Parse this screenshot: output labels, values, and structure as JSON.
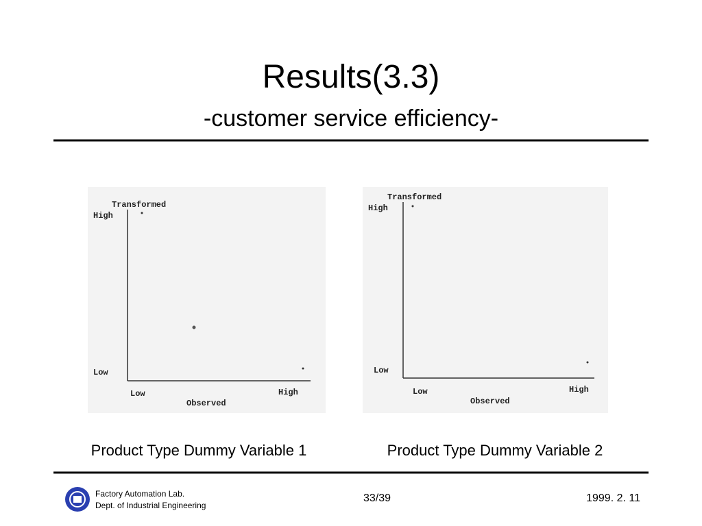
{
  "header": {
    "title": "Results(3.3)",
    "subtitle": "-customer service efficiency-"
  },
  "figures": [
    {
      "y_label": "Transformed",
      "y_high": "High",
      "y_low": "Low",
      "x_low": "Low",
      "x_high": "High",
      "x_label": "Observed",
      "caption": "Product Type Dummy Variable 1"
    },
    {
      "y_label": "Transformed",
      "y_high": "High",
      "y_low": "Low",
      "x_low": "Low",
      "x_high": "High",
      "x_label": "Observed",
      "caption": "Product Type Dummy Variable 2"
    }
  ],
  "footer": {
    "org": [
      "Factory Automation Lab.",
      "Dept. of Industrial Engineering"
    ],
    "page": "33/39",
    "date": "1999. 2. 11"
  }
}
